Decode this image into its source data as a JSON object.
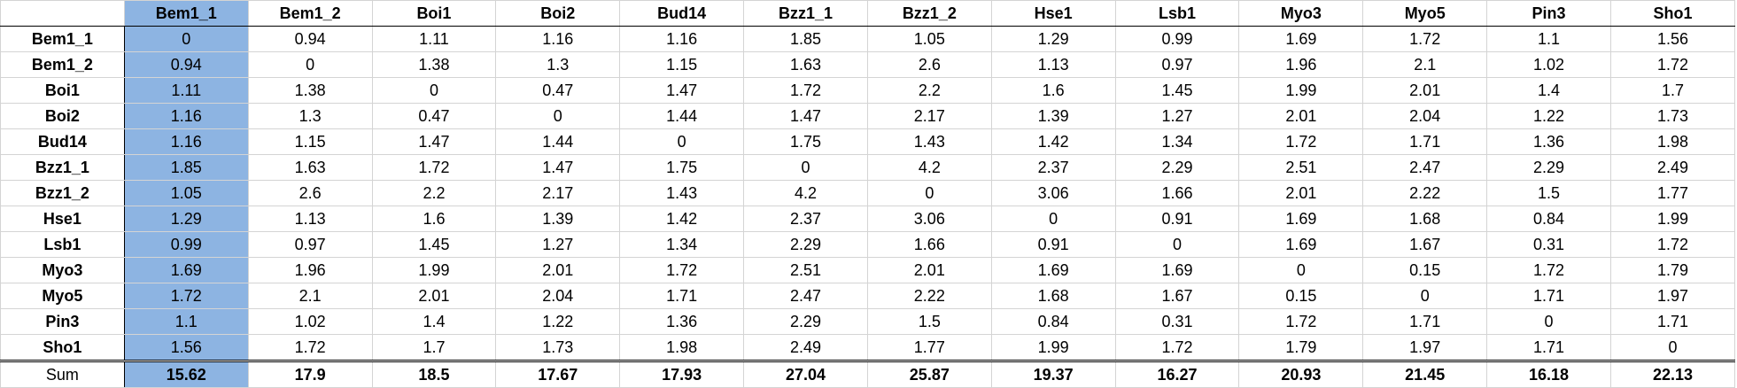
{
  "columns": [
    "Bem1_1",
    "Bem1_2",
    "Boi1",
    "Boi2",
    "Bud14",
    "Bzz1_1",
    "Bzz1_2",
    "Hse1",
    "Lsb1",
    "Myo3",
    "Myo5",
    "Pin3",
    "Sho1"
  ],
  "rows": [
    {
      "label": "Bem1_1",
      "cells": [
        "0",
        "0.94",
        "1.11",
        "1.16",
        "1.16",
        "1.85",
        "1.05",
        "1.29",
        "0.99",
        "1.69",
        "1.72",
        "1.1",
        "1.56"
      ]
    },
    {
      "label": "Bem1_2",
      "cells": [
        "0.94",
        "0",
        "1.38",
        "1.3",
        "1.15",
        "1.63",
        "2.6",
        "1.13",
        "0.97",
        "1.96",
        "2.1",
        "1.02",
        "1.72"
      ]
    },
    {
      "label": "Boi1",
      "cells": [
        "1.11",
        "1.38",
        "0",
        "0.47",
        "1.47",
        "1.72",
        "2.2",
        "1.6",
        "1.45",
        "1.99",
        "2.01",
        "1.4",
        "1.7"
      ]
    },
    {
      "label": "Boi2",
      "cells": [
        "1.16",
        "1.3",
        "0.47",
        "0",
        "1.44",
        "1.47",
        "2.17",
        "1.39",
        "1.27",
        "2.01",
        "2.04",
        "1.22",
        "1.73"
      ]
    },
    {
      "label": "Bud14",
      "cells": [
        "1.16",
        "1.15",
        "1.47",
        "1.44",
        "0",
        "1.75",
        "1.43",
        "1.42",
        "1.34",
        "1.72",
        "1.71",
        "1.36",
        "1.98"
      ]
    },
    {
      "label": "Bzz1_1",
      "cells": [
        "1.85",
        "1.63",
        "1.72",
        "1.47",
        "1.75",
        "0",
        "4.2",
        "2.37",
        "2.29",
        "2.51",
        "2.47",
        "2.29",
        "2.49"
      ]
    },
    {
      "label": "Bzz1_2",
      "cells": [
        "1.05",
        "2.6",
        "2.2",
        "2.17",
        "1.43",
        "4.2",
        "0",
        "3.06",
        "1.66",
        "2.01",
        "2.22",
        "1.5",
        "1.77"
      ]
    },
    {
      "label": "Hse1",
      "cells": [
        "1.29",
        "1.13",
        "1.6",
        "1.39",
        "1.42",
        "2.37",
        "3.06",
        "0",
        "0.91",
        "1.69",
        "1.68",
        "0.84",
        "1.99"
      ]
    },
    {
      "label": "Lsb1",
      "cells": [
        "0.99",
        "0.97",
        "1.45",
        "1.27",
        "1.34",
        "2.29",
        "1.66",
        "0.91",
        "0",
        "1.69",
        "1.67",
        "0.31",
        "1.72"
      ]
    },
    {
      "label": "Myo3",
      "cells": [
        "1.69",
        "1.96",
        "1.99",
        "2.01",
        "1.72",
        "2.51",
        "2.01",
        "1.69",
        "1.69",
        "0",
        "0.15",
        "1.72",
        "1.79"
      ]
    },
    {
      "label": "Myo5",
      "cells": [
        "1.72",
        "2.1",
        "2.01",
        "2.04",
        "1.71",
        "2.47",
        "2.22",
        "1.68",
        "1.67",
        "0.15",
        "0",
        "1.71",
        "1.97"
      ]
    },
    {
      "label": "Pin3",
      "cells": [
        "1.1",
        "1.02",
        "1.4",
        "1.22",
        "1.36",
        "2.29",
        "1.5",
        "0.84",
        "0.31",
        "1.72",
        "1.71",
        "0",
        "1.71"
      ]
    },
    {
      "label": "Sho1",
      "cells": [
        "1.56",
        "1.72",
        "1.7",
        "1.73",
        "1.98",
        "2.49",
        "1.77",
        "1.99",
        "1.72",
        "1.79",
        "1.97",
        "1.71",
        "0"
      ]
    }
  ],
  "sum": {
    "label": "Sum",
    "cells": [
      "15.62",
      "17.9",
      "18.5",
      "17.67",
      "17.93",
      "27.04",
      "25.87",
      "19.37",
      "16.27",
      "20.93",
      "21.45",
      "16.18",
      "22.13"
    ]
  },
  "selected_column_index": 0,
  "colors": {
    "selection": "#8db4e2",
    "gridline": "#d4d4d4"
  }
}
